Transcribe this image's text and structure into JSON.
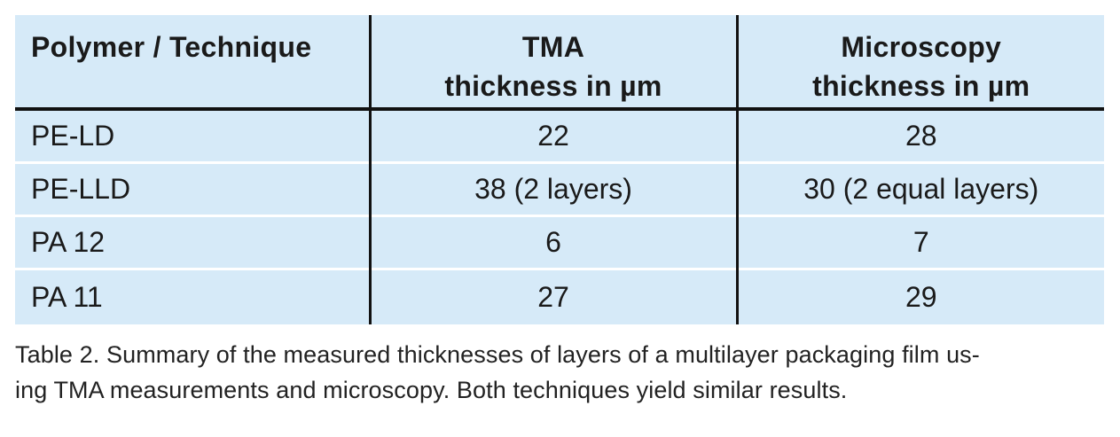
{
  "table": {
    "headers": {
      "col1": "Polymer / Technique",
      "col2_line1": "TMA",
      "col2_line2": "thickness in µm",
      "col3_line1": "Microscopy",
      "col3_line2": "thickness in µm"
    },
    "rows": [
      {
        "polymer": "PE-LD",
        "tma": "22",
        "microscopy": "28"
      },
      {
        "polymer": "PE-LLD",
        "tma": "38 (2 layers)",
        "microscopy": "30 (2 equal layers)"
      },
      {
        "polymer": "PA 12",
        "tma": "6",
        "microscopy": "7"
      },
      {
        "polymer": "PA 11",
        "tma": "27",
        "microscopy": "29"
      }
    ]
  },
  "caption": {
    "line1": "Table 2. Summary of the measured thicknesses of layers of a multilayer packaging film us-",
    "line2": "ing TMA measurements and microscopy. Both techniques yield similar results."
  },
  "colors": {
    "table_background": "#d6eaf8",
    "rule_color": "#111111",
    "row_separator": "#ffffff"
  }
}
